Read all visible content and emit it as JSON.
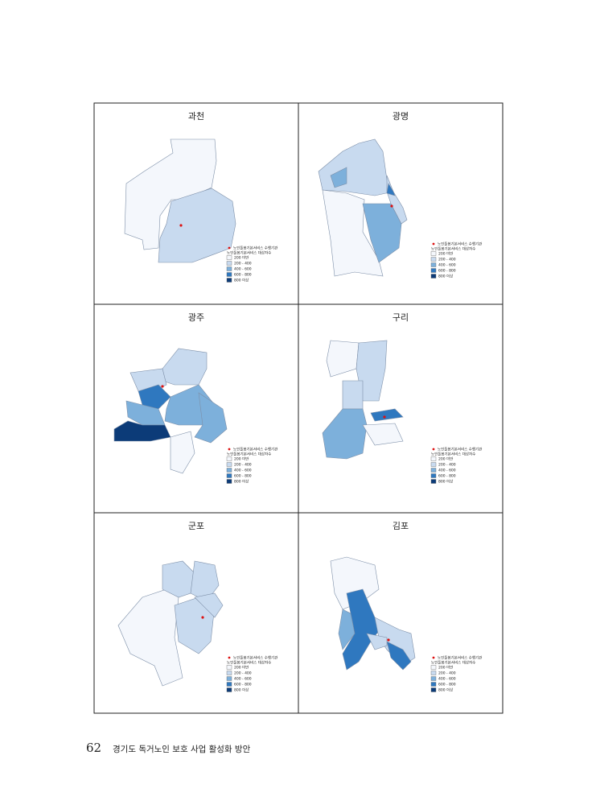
{
  "page": {
    "panels": [
      {
        "title": "과천",
        "legend": {
          "point": "노인돌봄기본서비스 수행기관",
          "heading": "노인돌봄기본서비스 대상자수",
          "classes": [
            "200 미만",
            "200 - 400",
            "400 - 600",
            "600 - 800",
            "800 이상"
          ]
        }
      },
      {
        "title": "광명",
        "legend": {
          "point": "노인돌봄기본서비스 수행기관",
          "heading": "노인돌봄기본서비스 대상자수",
          "classes": [
            "200 미만",
            "200 - 400",
            "400 - 600",
            "600 - 800",
            "800 이상"
          ]
        }
      },
      {
        "title": "광주",
        "legend": {
          "point": "노인돌봄기본서비스 수행기관",
          "heading": "노인돌봄기본서비스 대상자수",
          "classes": [
            "200 미만",
            "200 - 400",
            "400 - 600",
            "600 - 800",
            "800 이상"
          ]
        }
      },
      {
        "title": "구리",
        "legend": {
          "point": "노인돌봄기본서비스 수행기관",
          "heading": "노인돌봄기본서비스 대상자수",
          "classes": [
            "200 미만",
            "200 - 400",
            "400 - 600",
            "600 - 800",
            "800 이상"
          ]
        }
      },
      {
        "title": "군포",
        "legend": {
          "point": "노인돌봄기본서비스 수행기관",
          "heading": "노인돌봄기본서비스 대상자수",
          "classes": [
            "200 미만",
            "200 - 400",
            "400 - 600",
            "600 - 800",
            "800 이상"
          ]
        }
      },
      {
        "title": "김포",
        "legend": {
          "point": "노인돌봄기본서비스 수행기관",
          "heading": "노인돌봄기본서비스 대상자수",
          "classes": [
            "200 미만",
            "200 - 400",
            "400 - 600",
            "600 - 800",
            "800 이상"
          ]
        }
      }
    ],
    "footer": {
      "page_number": "62",
      "text": "경기도 독거노인 보호 사업 활성화 방안"
    }
  }
}
